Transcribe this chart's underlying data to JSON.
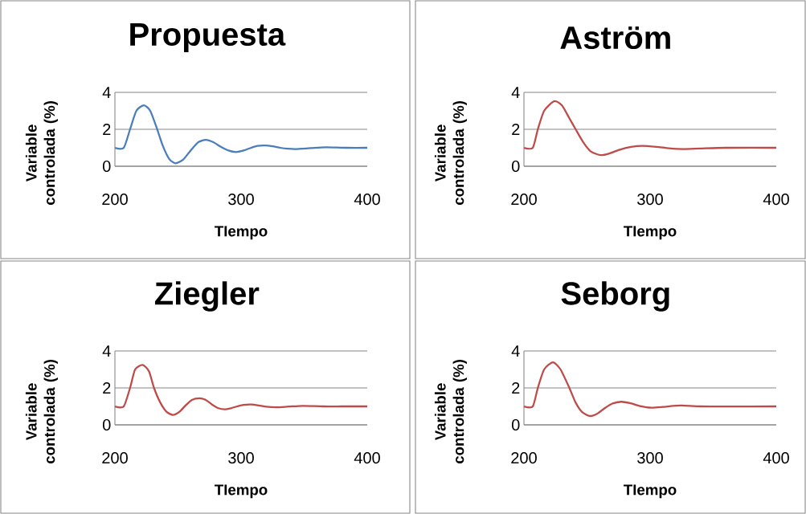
{
  "chart_data": [
    {
      "type": "line",
      "title": "Propuesta",
      "xlabel": "TIempo",
      "ylabel": "Variable controlada (%)",
      "xlim": [
        200,
        400
      ],
      "ylim": [
        0,
        4
      ],
      "xticks": [
        200,
        300,
        400
      ],
      "yticks": [
        0,
        2,
        4
      ],
      "grid": "y",
      "x": [
        200,
        207,
        212,
        217,
        223,
        228,
        233,
        238,
        243,
        248,
        254,
        260,
        266,
        272,
        278,
        284,
        290,
        296,
        302,
        308,
        313,
        319,
        325,
        331,
        337,
        343,
        355,
        367,
        383,
        400
      ],
      "series": [
        {
          "color": "#4a7ebb",
          "values": [
            1,
            1,
            2.0,
            3.0,
            3.3,
            3.0,
            2.1,
            1.1,
            0.4,
            0.16,
            0.35,
            0.85,
            1.3,
            1.43,
            1.3,
            1.05,
            0.85,
            0.77,
            0.85,
            1.0,
            1.1,
            1.12,
            1.08,
            1.0,
            0.95,
            0.93,
            0.98,
            1.03,
            1.0,
            1.0
          ]
        }
      ]
    },
    {
      "type": "line",
      "title": "Aström",
      "xlabel": "TIempo",
      "ylabel": "Variable controlada (%)",
      "xlim": [
        200,
        400
      ],
      "ylim": [
        0,
        4
      ],
      "xticks": [
        200,
        300,
        400
      ],
      "yticks": [
        0,
        2,
        4
      ],
      "grid": "y",
      "x": [
        200,
        207,
        211,
        216,
        224,
        230,
        236,
        241,
        247,
        253,
        261,
        268,
        276,
        285,
        294,
        305,
        315,
        326,
        340,
        360,
        400
      ],
      "series": [
        {
          "color": "#be4b48",
          "values": [
            1,
            1,
            2.0,
            3.0,
            3.52,
            3.3,
            2.6,
            2.0,
            1.3,
            0.8,
            0.6,
            0.7,
            0.9,
            1.05,
            1.1,
            1.05,
            0.97,
            0.93,
            0.96,
            1.0,
            1.0
          ]
        }
      ]
    },
    {
      "type": "line",
      "title": "Ziegler",
      "xlabel": "TIempo",
      "ylabel": "Variable controlada (%)",
      "xlim": [
        200,
        400
      ],
      "ylim": [
        0,
        4
      ],
      "xticks": [
        200,
        300,
        400
      ],
      "yticks": [
        0,
        2,
        4
      ],
      "grid": "y",
      "x": [
        200,
        207,
        212,
        216,
        222,
        227,
        231,
        236,
        241,
        246,
        251,
        256,
        261,
        267,
        272,
        277,
        282,
        287,
        292,
        297,
        302,
        308,
        314,
        320,
        328,
        338,
        349,
        365,
        380,
        400
      ],
      "series": [
        {
          "color": "#be4b48",
          "values": [
            1,
            1,
            2.0,
            3.0,
            3.24,
            2.9,
            2.0,
            1.2,
            0.7,
            0.54,
            0.7,
            1.05,
            1.35,
            1.44,
            1.35,
            1.1,
            0.9,
            0.84,
            0.9,
            1.0,
            1.08,
            1.1,
            1.05,
            0.98,
            0.95,
            0.99,
            1.03,
            1.0,
            1.0,
            1.0
          ]
        }
      ]
    },
    {
      "type": "line",
      "title": "Seborg",
      "xlabel": "TIempo",
      "ylabel": "Variable controlada (%)",
      "xlim": [
        200,
        400
      ],
      "ylim": [
        0,
        4
      ],
      "xticks": [
        200,
        300,
        400
      ],
      "yticks": [
        0,
        2,
        4
      ],
      "grid": "y",
      "x": [
        200,
        207,
        211,
        216,
        223,
        229,
        236,
        241,
        246,
        252,
        258,
        264,
        270,
        277,
        284,
        292,
        301,
        310,
        318,
        325,
        340,
        360,
        400
      ],
      "series": [
        {
          "color": "#be4b48",
          "values": [
            1,
            1,
            2.0,
            3.0,
            3.39,
            3.0,
            2.0,
            1.2,
            0.7,
            0.48,
            0.6,
            0.9,
            1.15,
            1.25,
            1.18,
            1.02,
            0.93,
            0.97,
            1.03,
            1.05,
            1.0,
            0.99,
            1.0
          ]
        }
      ]
    }
  ]
}
